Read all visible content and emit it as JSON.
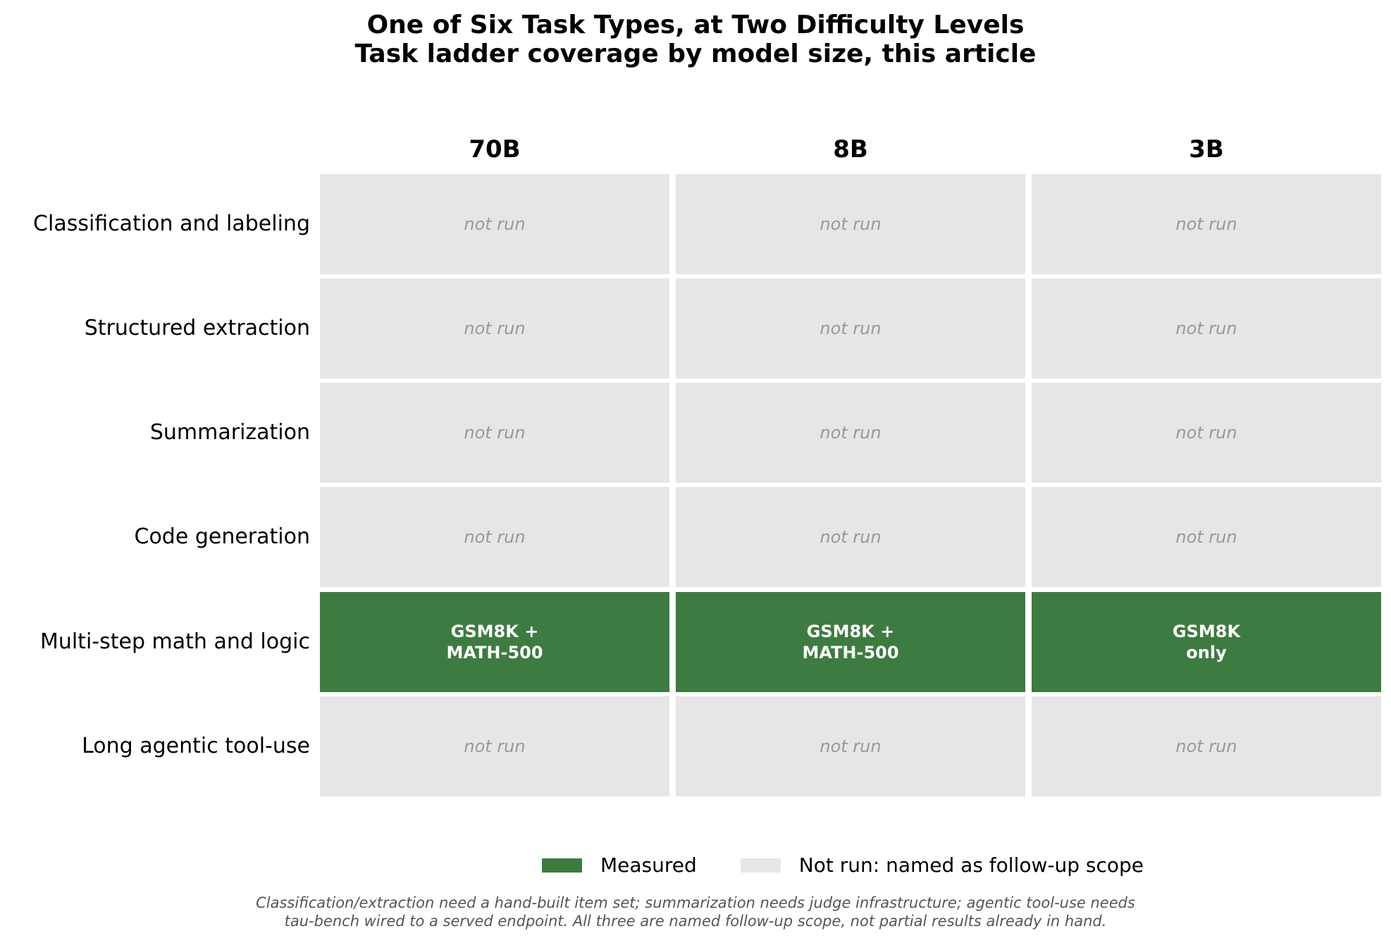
{
  "chart_data": {
    "type": "table",
    "title_line_1": "One of Six Task Types, at Two Difficulty Levels",
    "title_line_2": "Task ladder coverage by model size, this article",
    "columns": [
      "70B",
      "8B",
      "3B"
    ],
    "rows": [
      "Classification and labeling",
      "Structured extraction",
      "Summarization",
      "Code generation",
      "Multi-step math and logic",
      "Long agentic tool-use"
    ],
    "cells": [
      [
        {
          "status": "not_run",
          "text": "not run"
        },
        {
          "status": "not_run",
          "text": "not run"
        },
        {
          "status": "not_run",
          "text": "not run"
        }
      ],
      [
        {
          "status": "not_run",
          "text": "not run"
        },
        {
          "status": "not_run",
          "text": "not run"
        },
        {
          "status": "not_run",
          "text": "not run"
        }
      ],
      [
        {
          "status": "not_run",
          "text": "not run"
        },
        {
          "status": "not_run",
          "text": "not run"
        },
        {
          "status": "not_run",
          "text": "not run"
        }
      ],
      [
        {
          "status": "not_run",
          "text": "not run"
        },
        {
          "status": "not_run",
          "text": "not run"
        },
        {
          "status": "not_run",
          "text": "not run"
        }
      ],
      [
        {
          "status": "measured",
          "text": "GSM8K +\nMATH-500"
        },
        {
          "status": "measured",
          "text": "GSM8K +\nMATH-500"
        },
        {
          "status": "measured",
          "text": "GSM8K\nonly"
        }
      ],
      [
        {
          "status": "not_run",
          "text": "not run"
        },
        {
          "status": "not_run",
          "text": "not run"
        },
        {
          "status": "not_run",
          "text": "not run"
        }
      ]
    ],
    "legend": [
      {
        "status": "measured",
        "label": "Measured",
        "color": "#3e7b40"
      },
      {
        "status": "not_run",
        "label": "Not run: named as follow-up scope",
        "color": "#e6e6e6"
      }
    ],
    "legend_position": "bottom-center",
    "footnote_line_1": "Classification/extraction need a hand-built item set; summarization needs judge infrastructure; agentic tool-use needs",
    "footnote_line_2": "tau-bench wired to a served endpoint. All three are named follow-up scope, not partial results already in hand."
  }
}
